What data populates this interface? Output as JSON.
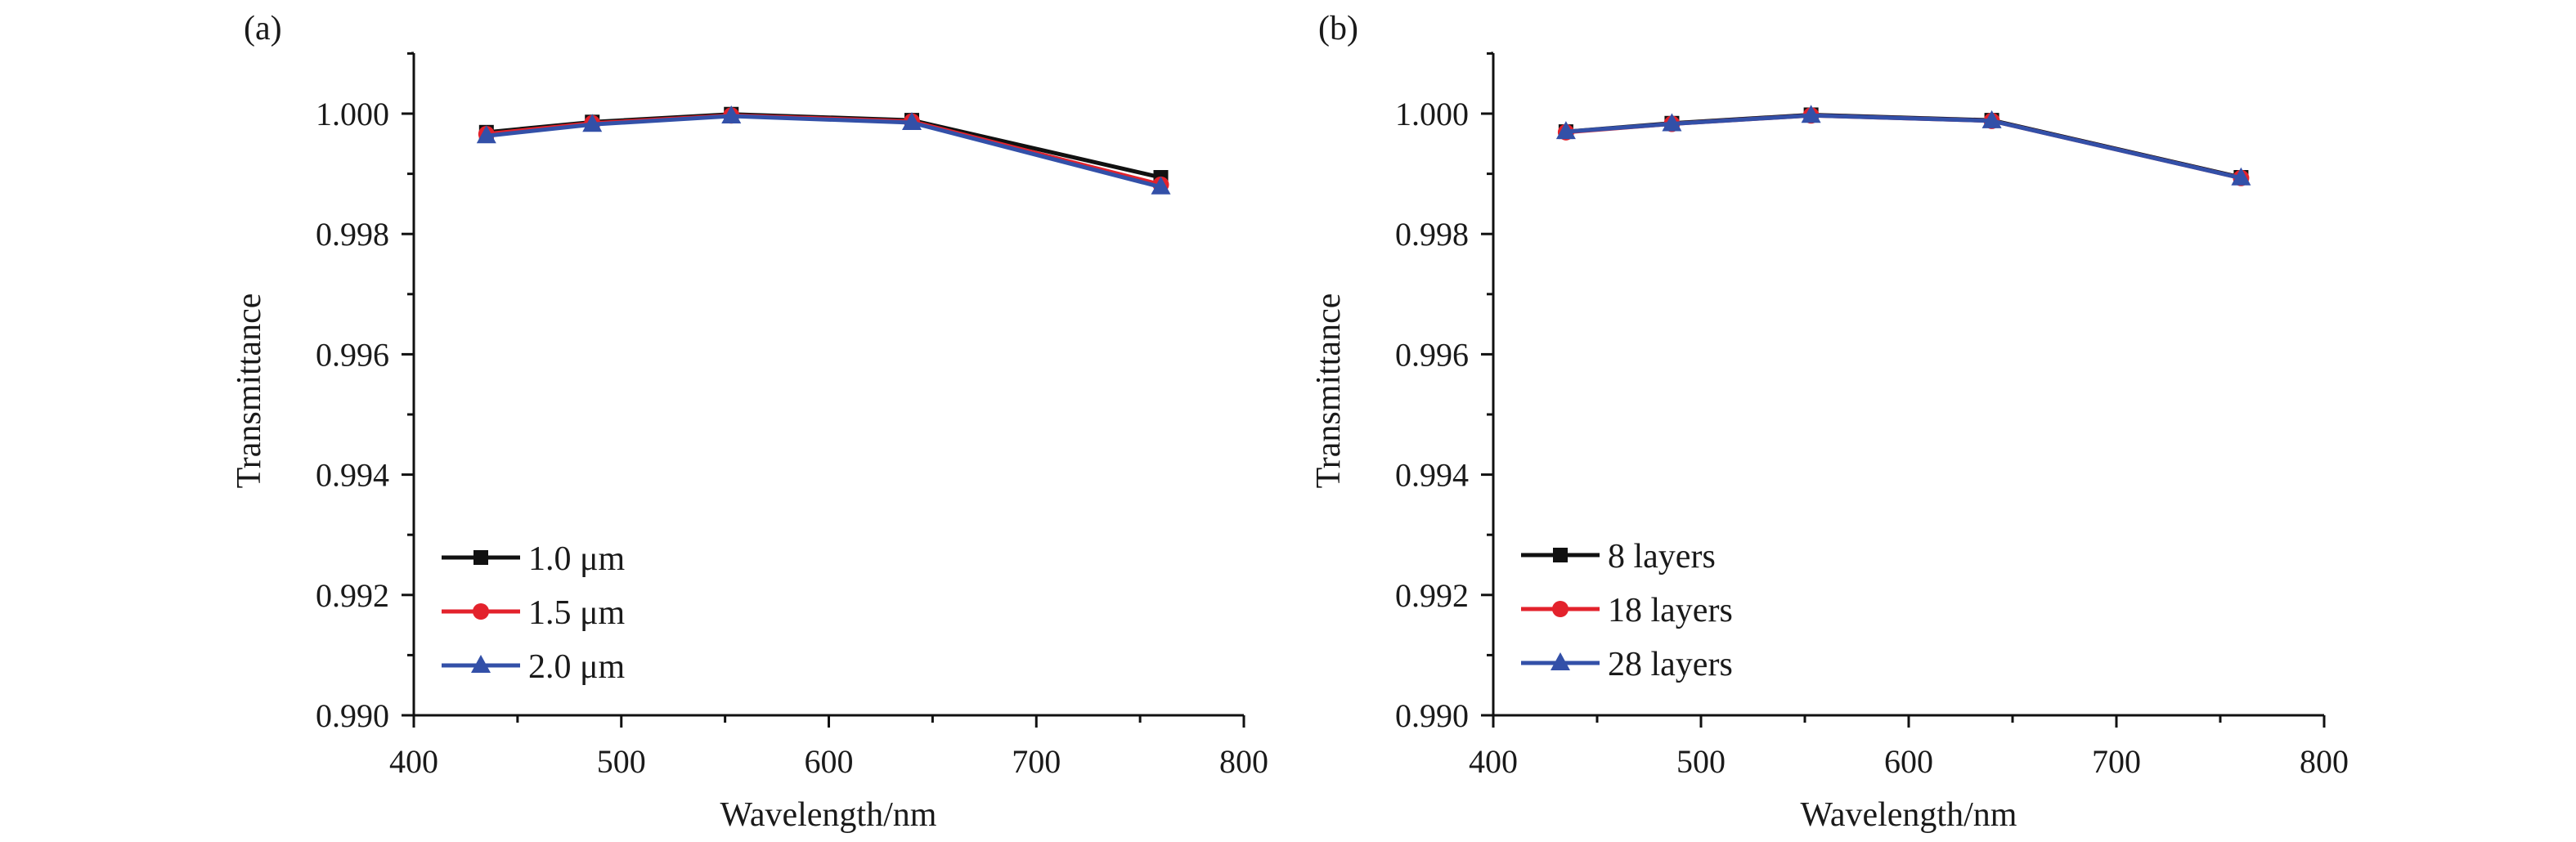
{
  "figure": {
    "panels": [
      "(a)",
      "(b)"
    ]
  },
  "chart_data": [
    {
      "type": "line",
      "panel_label": "(a)",
      "title": "",
      "xlabel": "Wavelength/nm",
      "ylabel": "Transmittance",
      "xlim": [
        400,
        800
      ],
      "ylim": [
        0.99,
        1.001
      ],
      "xticks": [
        400,
        500,
        600,
        700,
        800
      ],
      "xtick_labels": [
        "400",
        "500",
        "600",
        "700",
        "800"
      ],
      "yticks": [
        0.99,
        0.992,
        0.994,
        0.996,
        0.998,
        1.0
      ],
      "ytick_labels": [
        "0.990",
        "0.992",
        "0.994",
        "0.996",
        "0.998",
        "1.000"
      ],
      "grid": false,
      "legend_position": "bottom-left",
      "x": [
        435,
        486,
        553,
        640,
        760
      ],
      "series": [
        {
          "name": "1.0 μm",
          "color": "#111111",
          "marker": "square",
          "values": [
            0.99969,
            0.99986,
            0.99999,
            0.99989,
            0.99894
          ]
        },
        {
          "name": "1.5 μm",
          "color": "#e3222c",
          "marker": "circle",
          "values": [
            0.99966,
            0.99984,
            0.99997,
            0.99987,
            0.99882
          ]
        },
        {
          "name": "2.0 μm",
          "color": "#3350a8",
          "marker": "triangle",
          "values": [
            0.99963,
            0.99982,
            0.99996,
            0.99985,
            0.99878
          ]
        }
      ]
    },
    {
      "type": "line",
      "panel_label": "(b)",
      "title": "",
      "xlabel": "Wavelength/nm",
      "ylabel": "Transmittance",
      "xlim": [
        400,
        800
      ],
      "ylim": [
        0.99,
        1.001
      ],
      "xticks": [
        400,
        500,
        600,
        700,
        800
      ],
      "xtick_labels": [
        "400",
        "500",
        "600",
        "700",
        "800"
      ],
      "yticks": [
        0.99,
        0.992,
        0.994,
        0.996,
        0.998,
        1.0
      ],
      "ytick_labels": [
        "0.990",
        "0.992",
        "0.994",
        "0.996",
        "0.998",
        "1.000"
      ],
      "grid": false,
      "legend_position": "bottom-left",
      "x": [
        435,
        486,
        553,
        640,
        760
      ],
      "series": [
        {
          "name": "8 layers",
          "color": "#111111",
          "marker": "square",
          "values": [
            0.9997,
            0.99984,
            0.99998,
            0.99989,
            0.99894
          ]
        },
        {
          "name": "18 layers",
          "color": "#e3222c",
          "marker": "circle",
          "values": [
            0.99969,
            0.99983,
            0.99997,
            0.99988,
            0.99893
          ]
        },
        {
          "name": "28 layers",
          "color": "#3350a8",
          "marker": "triangle",
          "values": [
            0.9997,
            0.99983,
            0.99997,
            0.99988,
            0.99893
          ]
        }
      ]
    }
  ]
}
